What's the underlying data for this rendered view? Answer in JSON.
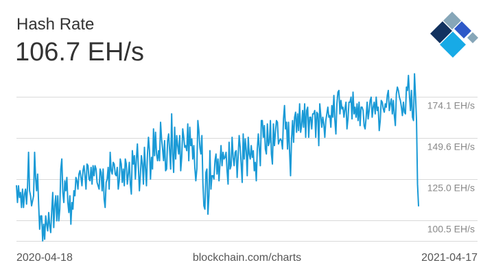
{
  "header": {
    "title": "Hash Rate",
    "current_value": "106.7 EH/s",
    "source": "blockchain.com/charts"
  },
  "colors": {
    "line": "#1a9ad6",
    "grid": "#d9d9d9",
    "tick_text": "#888888",
    "logo_dark": "#12325f",
    "logo_blue": "#2e59c8",
    "logo_cyan": "#17aae6",
    "logo_light": "#86a6b8"
  },
  "logo": {
    "icon": "blockchain-logo-icon"
  },
  "chart_data": {
    "type": "line",
    "title": "Hash Rate",
    "xlabel": "",
    "ylabel": "",
    "x_start": "2020-04-18",
    "x_end": "2021-04-17",
    "x_tick_labels": [
      "2020-04-18",
      "2021-04-17"
    ],
    "ylim": [
      88,
      189
    ],
    "y_ticks": [
      100.5,
      125.0,
      149.6,
      174.1
    ],
    "y_tick_labels": [
      "100.5 EH/s",
      "125.0 EH/s",
      "149.6 EH/s",
      "174.1 EH/s"
    ],
    "grid": true,
    "legend": "none",
    "series": [
      {
        "name": "",
        "values": [
          121,
          111,
          121,
          114,
          117,
          108,
          119,
          108,
          116,
          119,
          110,
          121,
          141,
          118,
          115,
          109,
          112,
          115,
          141,
          126,
          118,
          128,
          110,
          95,
          103,
          103,
          88,
          98,
          89,
          103,
          98,
          94,
          105,
          97,
          93,
          106,
          117,
          96,
          109,
          115,
          100,
          115,
          100,
          107,
          131,
          137,
          117,
          111,
          124,
          118,
          126,
          111,
          105,
          115,
          98,
          111,
          107,
          118,
          115,
          126,
          124,
          119,
          128,
          130,
          126,
          121,
          130,
          133,
          127,
          119,
          134,
          133,
          125,
          124,
          132,
          122,
          133,
          127,
          133,
          131,
          123,
          121,
          119,
          131,
          129,
          118,
          131,
          113,
          108,
          123,
          125,
          132,
          119,
          141,
          130,
          128,
          135,
          134,
          128,
          127,
          132,
          119,
          124,
          137,
          134,
          123,
          131,
          121,
          137,
          134,
          122,
          128,
          135,
          122,
          116,
          142,
          134,
          139,
          125,
          137,
          146,
          132,
          118,
          128,
          139,
          134,
          122,
          144,
          132,
          121,
          140,
          150,
          142,
          125,
          138,
          131,
          155,
          139,
          153,
          140,
          136,
          142,
          136,
          159,
          149,
          143,
          136,
          148,
          130,
          131,
          148,
          152,
          142,
          131,
          164,
          140,
          129,
          156,
          137,
          151,
          145,
          140,
          151,
          130,
          138,
          155,
          150,
          144,
          145,
          142,
          158,
          136,
          156,
          145,
          149,
          137,
          145,
          132,
          124,
          131,
          160,
          154,
          144,
          140,
          151,
          123,
          109,
          107,
          129,
          131,
          104,
          115,
          142,
          119,
          127,
          127,
          125,
          136,
          140,
          128,
          137,
          124,
          135,
          145,
          133,
          141,
          137,
          138,
          141,
          130,
          122,
          147,
          131,
          133,
          150,
          138,
          133,
          141,
          142,
          126,
          139,
          151,
          144,
          134,
          123,
          152,
          137,
          149,
          142,
          127,
          150,
          140,
          137,
          145,
          138,
          142,
          130,
          135,
          124,
          143,
          152,
          143,
          133,
          160,
          160,
          150,
          157,
          143,
          140,
          158,
          145,
          147,
          160,
          140,
          134,
          158,
          145,
          153,
          160,
          159,
          146,
          148,
          149,
          148,
          143,
          161,
          169,
          155,
          159,
          143,
          159,
          142,
          127,
          149,
          160,
          147,
          162,
          165,
          153,
          164,
          154,
          170,
          153,
          157,
          166,
          156,
          170,
          150,
          166,
          168,
          150,
          162,
          162,
          155,
          164,
          164,
          166,
          150,
          165,
          164,
          145,
          170,
          163,
          156,
          162,
          158,
          150,
          160,
          164,
          168,
          162,
          163,
          156,
          169,
          162,
          175,
          160,
          152,
          170,
          177,
          178,
          164,
          172,
          167,
          168,
          162,
          167,
          171,
          155,
          161,
          171,
          171,
          174,
          161,
          177,
          164,
          168,
          162,
          170,
          160,
          171,
          157,
          168,
          168,
          166,
          157,
          155,
          162,
          171,
          161,
          166,
          172,
          174,
          162,
          168,
          171,
          164,
          174,
          166,
          168,
          154,
          160,
          172,
          171,
          167,
          165,
          170,
          168,
          175,
          178,
          166,
          170,
          173,
          164,
          172,
          163,
          157,
          176,
          180,
          178,
          174,
          172,
          168,
          163,
          171,
          165,
          164,
          180,
          178,
          187,
          175,
          166,
          178,
          162,
          160,
          188,
          175,
          160,
          122,
          109
        ]
      }
    ]
  }
}
